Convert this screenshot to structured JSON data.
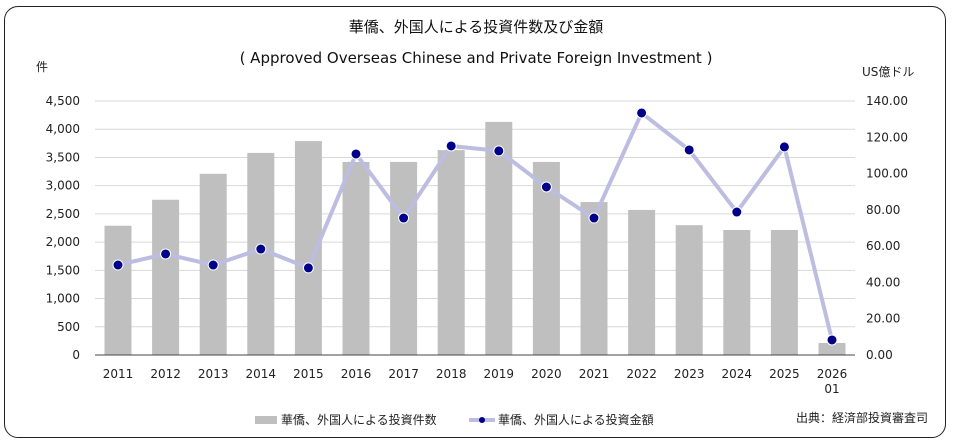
{
  "chart_data": {
    "type": "bar+line",
    "title": "華僑、外国人による投資件数及び金額",
    "subtitle": "( Approved Overseas Chinese and Private Foreign Investment )",
    "ylabel_left": "件",
    "ylabel_right": "US億ドル",
    "categories": [
      "2011",
      "2012",
      "2013",
      "2014",
      "2015",
      "2016",
      "2017",
      "2018",
      "2019",
      "2020",
      "2021",
      "2022",
      "2023",
      "2024",
      "2025",
      "2026\n01"
    ],
    "ylim_left": [
      0,
      4500
    ],
    "yticks_left": [
      "0",
      "500",
      "1,000",
      "1,500",
      "2,000",
      "2,500",
      "3,000",
      "3,500",
      "4,000",
      "4,500"
    ],
    "ylim_right": [
      0,
      140
    ],
    "yticks_right": [
      "0.00",
      "20.00",
      "40.00",
      "60.00",
      "80.00",
      "100.00",
      "120.00",
      "140.00"
    ],
    "grid": true,
    "legend_position": "bottom",
    "series": [
      {
        "name": "華僑、外国人による投資件数",
        "type": "bar",
        "axis": "left",
        "color": "#bfbfbf",
        "values": [
          2290,
          2750,
          3210,
          3580,
          3790,
          3420,
          3420,
          3630,
          4130,
          3420,
          2710,
          2570,
          2300,
          2215,
          2215,
          213
        ]
      },
      {
        "name": "華僑、外国人による投資金額",
        "type": "line",
        "axis": "right",
        "color": "#bcbde0",
        "marker_color": "#00008b",
        "values": [
          49.6,
          55.7,
          49.6,
          58.4,
          48.0,
          110.8,
          75.5,
          115.2,
          112.5,
          92.6,
          75.5,
          133.4,
          113.0,
          78.8,
          114.7,
          8.3
        ]
      }
    ],
    "source": "出典：経済部投資審査司"
  }
}
